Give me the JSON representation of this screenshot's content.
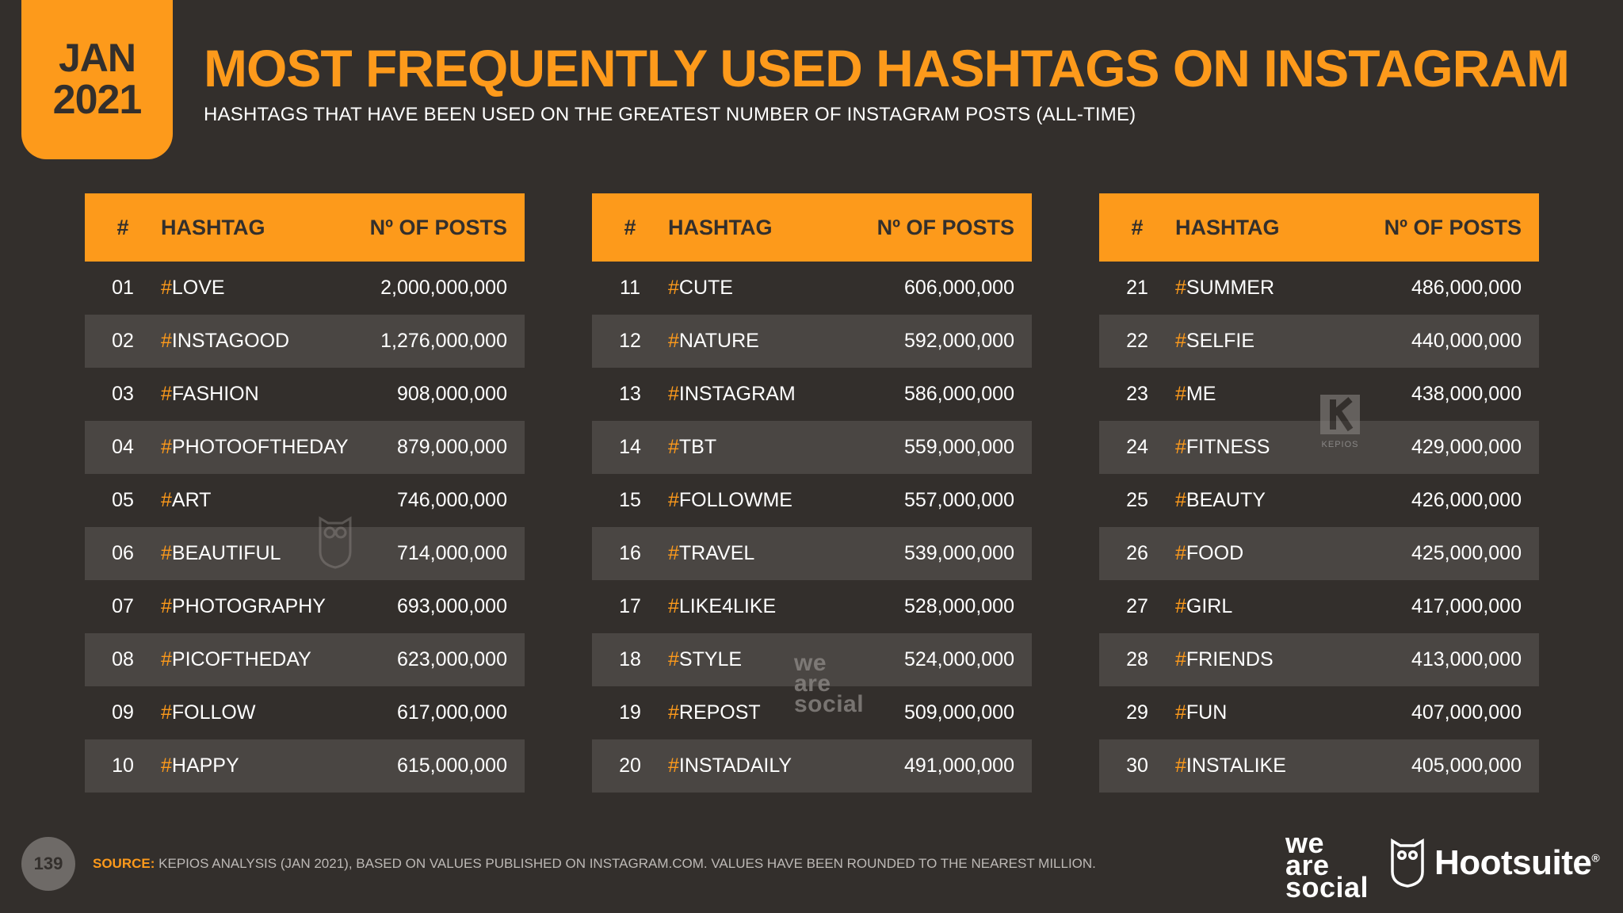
{
  "badge": {
    "month": "JAN",
    "year": "2021"
  },
  "title": "MOST FREQUENTLY USED HASHTAGS ON INSTAGRAM",
  "subtitle": "HASHTAGS THAT HAVE BEEN USED ON THE GREATEST NUMBER OF INSTAGRAM POSTS (ALL-TIME)",
  "headers": {
    "num": "#",
    "tag": "HASHTAG",
    "posts": "Nº OF POSTS"
  },
  "tables": [
    {
      "rows": [
        {
          "num": "01",
          "tag": "LOVE",
          "posts": "2,000,000,000"
        },
        {
          "num": "02",
          "tag": "INSTAGOOD",
          "posts": "1,276,000,000"
        },
        {
          "num": "03",
          "tag": "FASHION",
          "posts": "908,000,000"
        },
        {
          "num": "04",
          "tag": "PHOTOOFTHEDAY",
          "posts": "879,000,000"
        },
        {
          "num": "05",
          "tag": "ART",
          "posts": "746,000,000"
        },
        {
          "num": "06",
          "tag": "BEAUTIFUL",
          "posts": "714,000,000"
        },
        {
          "num": "07",
          "tag": "PHOTOGRAPHY",
          "posts": "693,000,000"
        },
        {
          "num": "08",
          "tag": "PICOFTHEDAY",
          "posts": "623,000,000"
        },
        {
          "num": "09",
          "tag": "FOLLOW",
          "posts": "617,000,000"
        },
        {
          "num": "10",
          "tag": "HAPPY",
          "posts": "615,000,000"
        }
      ]
    },
    {
      "rows": [
        {
          "num": "11",
          "tag": "CUTE",
          "posts": "606,000,000"
        },
        {
          "num": "12",
          "tag": "NATURE",
          "posts": "592,000,000"
        },
        {
          "num": "13",
          "tag": "INSTAGRAM",
          "posts": "586,000,000"
        },
        {
          "num": "14",
          "tag": "TBT",
          "posts": "559,000,000"
        },
        {
          "num": "15",
          "tag": "FOLLOWME",
          "posts": "557,000,000"
        },
        {
          "num": "16",
          "tag": "TRAVEL",
          "posts": "539,000,000"
        },
        {
          "num": "17",
          "tag": "LIKE4LIKE",
          "posts": "528,000,000"
        },
        {
          "num": "18",
          "tag": "STYLE",
          "posts": "524,000,000"
        },
        {
          "num": "19",
          "tag": "REPOST",
          "posts": "509,000,000"
        },
        {
          "num": "20",
          "tag": "INSTADAILY",
          "posts": "491,000,000"
        }
      ]
    },
    {
      "rows": [
        {
          "num": "21",
          "tag": "SUMMER",
          "posts": "486,000,000"
        },
        {
          "num": "22",
          "tag": "SELFIE",
          "posts": "440,000,000"
        },
        {
          "num": "23",
          "tag": "ME",
          "posts": "438,000,000"
        },
        {
          "num": "24",
          "tag": "FITNESS",
          "posts": "429,000,000"
        },
        {
          "num": "25",
          "tag": "BEAUTY",
          "posts": "426,000,000"
        },
        {
          "num": "26",
          "tag": "FOOD",
          "posts": "425,000,000"
        },
        {
          "num": "27",
          "tag": "GIRL",
          "posts": "417,000,000"
        },
        {
          "num": "28",
          "tag": "FRIENDS",
          "posts": "413,000,000"
        },
        {
          "num": "29",
          "tag": "FUN",
          "posts": "407,000,000"
        },
        {
          "num": "30",
          "tag": "INSTALIKE",
          "posts": "405,000,000"
        }
      ]
    }
  ],
  "watermarks": {
    "kepios": "KEPIOS",
    "was": [
      "we",
      "are",
      "social"
    ]
  },
  "footer": {
    "page": "139",
    "source_label": "SOURCE:",
    "source_text": "KEPIOS ANALYSIS (JAN 2021), BASED ON VALUES PUBLISHED ON INSTAGRAM.COM. VALUES HAVE BEEN ROUNDED TO THE NEAREST MILLION.",
    "logo_was": [
      "we",
      "are",
      "social"
    ],
    "logo_hootsuite": "Hootsuite",
    "logo_reg": "®"
  },
  "colors": {
    "accent": "#fd9a1b",
    "background": "#332f2c",
    "row_alt": "#4a4643"
  },
  "icons": {
    "owl": "hootsuite-owl-icon",
    "kepios": "kepios-logo-icon"
  }
}
